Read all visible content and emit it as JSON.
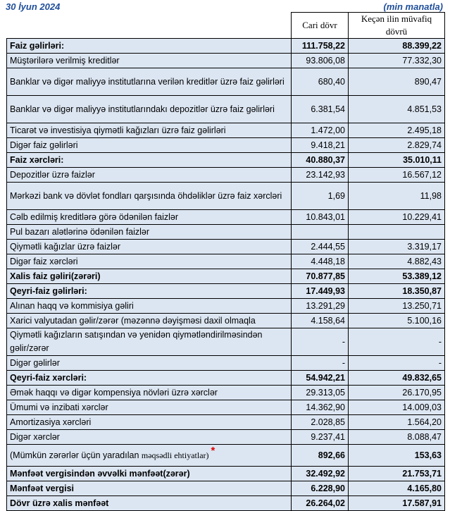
{
  "header": {
    "date": "30 İyun 2024",
    "unit": "(min manatla)",
    "col_current": "Cari dövr",
    "col_previous": "Keçən ilin müvafiq dövrü"
  },
  "rows": [
    {
      "label": "Faiz gəlirləri:",
      "current": "111.758,22",
      "previous": "88.399,22",
      "bold": true
    },
    {
      "label": "Müştərilərə verilmiş kreditlər",
      "current": "93.806,08",
      "previous": "77.332,30"
    },
    {
      "label": "Banklar və digər maliyyə institutlarına verilən kreditlər üzrə faiz gəlirləri",
      "current": "680,40",
      "previous": "890,47",
      "double": true
    },
    {
      "label": "Banklar və digər maliyyə institutlarındakı depozitlər üzrə faiz gəlirləri",
      "current": "6.381,54",
      "previous": "4.851,53",
      "double": true
    },
    {
      "label": "Ticarət və investisiya qiymətli kağızları üzrə faiz gəlirləri",
      "current": "1.472,00",
      "previous": "2.495,18"
    },
    {
      "label": "Digər faiz gəlirləri",
      "current": "9.418,21",
      "previous": "2.829,74"
    },
    {
      "label": "Faiz xərcləri:",
      "current": "40.880,37",
      "previous": "35.010,11",
      "bold": true
    },
    {
      "label": "Depozitlər üzrə faizlər",
      "current": "23.142,93",
      "previous": "16.567,12"
    },
    {
      "label": "Mərkəzi bank və dövlət fondları qarşısında öhdəliklər üzrə faiz xərcləri",
      "current": "1,69",
      "previous": "11,98",
      "double": true
    },
    {
      "label": "Cəlb edilmiş kreditlərə görə ödənilən faizlər",
      "current": "10.843,01",
      "previous": "10.229,41"
    },
    {
      "label": "Pul bazarı alətlərinə ödənilən faizlər",
      "current": "",
      "previous": ""
    },
    {
      "label": "Qiymətli kağızlar üzrə faizlər",
      "current": "2.444,55",
      "previous": "3.319,17"
    },
    {
      "label": "Digər faiz xərcləri",
      "current": "4.448,18",
      "previous": "4.882,43"
    },
    {
      "label": "Xalis faiz gəliri(zərəri)",
      "current": "70.877,85",
      "previous": "53.389,12",
      "bold": true
    },
    {
      "label": "Qeyri-faiz gəlirləri:",
      "current": "17.449,93",
      "previous": "18.350,87",
      "bold": true
    },
    {
      "label": "Alınan haqq və kommisiya gəliri",
      "current": "13.291,29",
      "previous": "13.250,71"
    },
    {
      "label": "Xarici valyutadan gəlir/zərər (məzənnə dəyişməsi daxil olmaqla",
      "current": "4.158,64",
      "previous": "5.100,16"
    },
    {
      "label": "Qiymətli kağızların satışından və yenidən qiymətləndirilməsindən gəlir/zərər",
      "current": "-",
      "previous": "-",
      "double": true
    },
    {
      "label": "Digər gəlirlər",
      "current": "-",
      "previous": "-"
    },
    {
      "label": "Qeyri-faiz xərcləri:",
      "current": "54.942,21",
      "previous": "49.832,65",
      "bold": true
    },
    {
      "label": "Əmək haqqı və digər kompensiya növləri üzrə xərclər",
      "current": "29.313,05",
      "previous": "26.170,95"
    },
    {
      "label": "Ümumi və inzibati xərclər",
      "current": "14.362,90",
      "previous": "14.009,03"
    },
    {
      "label": "Amortizasiya xərcləri",
      "current": "2.028,85",
      "previous": "1.564,20"
    },
    {
      "label": "Digər xərclər",
      "current": "9.237,41",
      "previous": "8.088,47"
    },
    {
      "label_a": "(Mümkün zərərlər üçün yaradılan ",
      "label_b": "məqsədli ehtiyatlar)",
      "marker": "*",
      "current": "892,66",
      "previous": "153,63",
      "bold_values": true
    },
    {
      "label": "Mənfəət vergisindən əvvəlki mənfəət(zərər)",
      "current": "32.492,92",
      "previous": "21.753,71",
      "bold": true
    },
    {
      "label": "Mənfəət vergisi",
      "current": "6.228,90",
      "previous": "4.165,80",
      "bold": true
    },
    {
      "label": "Dövr üzrə xalis mənfəət",
      "current": "26.264,02",
      "previous": "17.587,91",
      "bold": true
    }
  ],
  "colors": {
    "row_bg": "#dce6f2",
    "title": "#1f4e9a",
    "marker": "#e00000"
  }
}
